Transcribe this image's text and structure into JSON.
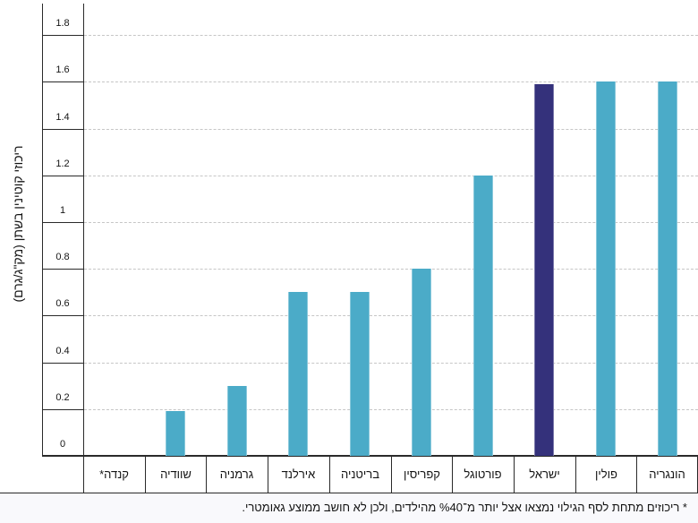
{
  "chart_data": {
    "type": "bar",
    "title": "",
    "ylabel": "ריכוזי קוטינין בשתן (מק\"ג/גרם)",
    "xlabel": "",
    "categories": [
      "קנדה*",
      "שוודיה",
      "גרמניה",
      "אירלנד",
      "בריטניה",
      "קפריסין",
      "פורטוגל",
      "ישראל",
      "פולין",
      "הונגריה"
    ],
    "values": [
      null,
      0.19,
      0.3,
      0.7,
      0.7,
      0.8,
      1.2,
      1.59,
      1.6,
      1.6
    ],
    "note_for_null": "קנדה מסומנת בכוכבית ללא עמודה (מתחת לסף הגילוי)",
    "highlight_category": "ישראל",
    "bar_color": "#4babc8",
    "highlight_color": "#34317b",
    "ytick_labels": [
      "0",
      "0.2",
      "0.4",
      "0.6",
      "0.8",
      "1",
      "1.2",
      "1.4",
      "1.6",
      "1.8"
    ],
    "ylim": [
      0,
      1.93
    ],
    "grid": "horizontal-dashed",
    "legend": "none",
    "direction": "rtl",
    "footnote": "* ריכוזים מתחת לסף הגילוי נמצאו אצל יותר מ־%40 מהילדים, ולכן לא חושב ממוצע גאומטרי."
  }
}
